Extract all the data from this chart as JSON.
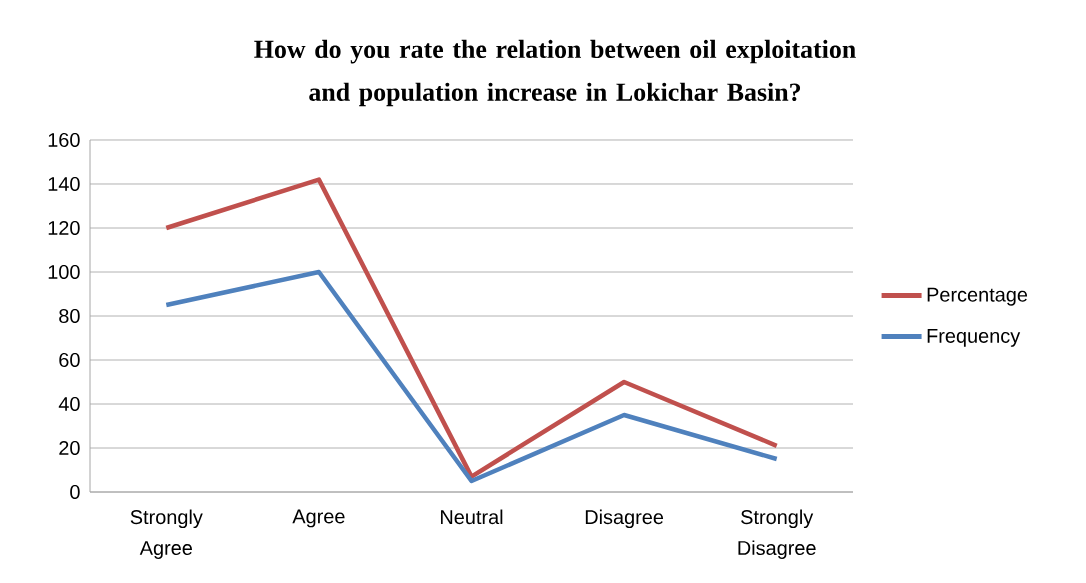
{
  "chart_data": {
    "type": "line",
    "title": "How do you rate the relation between oil exploitation and population increase in Lokichar Basin?",
    "categories": [
      "Strongly Agree",
      "Agree",
      "Neutral",
      "Disagree",
      "Strongly Disagree"
    ],
    "series": [
      {
        "name": "Percentage",
        "color": "#c0504d",
        "values": [
          120,
          142,
          7,
          50,
          21
        ]
      },
      {
        "name": "Frequency",
        "color": "#4f81bd",
        "values": [
          85,
          100,
          5,
          35,
          15
        ]
      }
    ],
    "ylim": [
      0,
      160
    ],
    "yticks": [
      0,
      20,
      40,
      60,
      80,
      100,
      120,
      140,
      160
    ],
    "grid": "y",
    "legend": "right",
    "marker": "none",
    "line_style": "solid"
  }
}
